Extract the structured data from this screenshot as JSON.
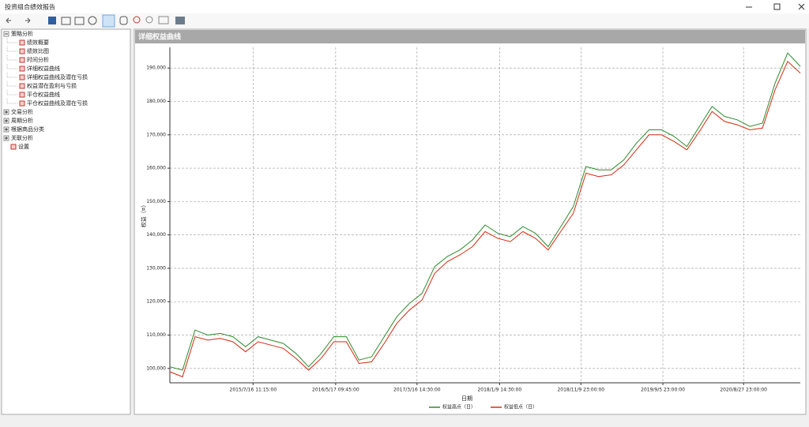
{
  "window": {
    "title": "投资组合绩效报告"
  },
  "tree": [
    {
      "label": "策略分析",
      "children": [
        "绩效概要",
        "绩效比图",
        "时间分析",
        "详细权益曲线",
        "详细权益曲线及潜在亏损",
        "权益潜在盈利与亏损",
        "平仓权益曲线",
        "平仓权益曲线及潜在亏损"
      ]
    },
    {
      "label": "交易分析",
      "children": []
    },
    {
      "label": "周期分析",
      "children": []
    },
    {
      "label": "根据商品分类",
      "children": []
    },
    {
      "label": "关联分析",
      "children": []
    }
  ],
  "settings_label": "设置",
  "panel_title": "详细权益曲线",
  "chart_data": {
    "type": "line",
    "x_label": "日期",
    "y_label": "权益（¤）",
    "x": [
      0,
      2,
      4,
      6,
      8,
      10,
      12,
      14,
      16,
      18,
      20,
      22,
      24,
      26,
      28,
      30,
      32,
      34,
      36,
      38,
      40,
      42,
      44,
      46,
      48,
      50,
      52,
      54,
      56,
      58,
      60,
      62,
      64,
      66,
      68,
      70,
      72,
      74,
      76,
      78,
      80,
      82,
      84,
      86,
      88,
      90,
      92,
      94,
      96,
      98,
      100
    ],
    "xlim": [
      0,
      100
    ],
    "xticks": [
      {
        "value": 13.2,
        "label": "2015/7/16 11:15:00"
      },
      {
        "value": 26.3,
        "label": "2016/5/17 09:45:00"
      },
      {
        "value": 39.2,
        "label": "2017/3/16 14:30:00"
      },
      {
        "value": 52.3,
        "label": "2018/1/9 14:30:00"
      },
      {
        "value": 65.2,
        "label": "2018/11/9 23:00:00"
      },
      {
        "value": 78.2,
        "label": "2019/9/5 23:00:00"
      },
      {
        "value": 91.0,
        "label": "2020/8/27 23:00:00"
      }
    ],
    "ylim": [
      95700,
      196200
    ],
    "yticks": [
      {
        "value": 100000,
        "label": "100,000"
      },
      {
        "value": 110000,
        "label": "110,000"
      },
      {
        "value": 120000,
        "label": "120,000"
      },
      {
        "value": 130000,
        "label": "130,000"
      },
      {
        "value": 140000,
        "label": "140,000"
      },
      {
        "value": 150000,
        "label": "150,000"
      },
      {
        "value": 160000,
        "label": "160,000"
      },
      {
        "value": 170000,
        "label": "170,000"
      },
      {
        "value": 180000,
        "label": "180,000"
      },
      {
        "value": 190000,
        "label": "190,000"
      }
    ],
    "grid": true,
    "series": [
      {
        "name": "权益高点（日）",
        "color": "#2e8b2e",
        "values": [
          100500,
          99500,
          111500,
          110000,
          110500,
          109500,
          106500,
          109500,
          108500,
          107500,
          104500,
          100500,
          104500,
          109500,
          109500,
          102500,
          103500,
          109500,
          115500,
          119500,
          122500,
          130500,
          133500,
          135500,
          138500,
          143000,
          140500,
          139500,
          142500,
          140500,
          136500,
          142500,
          148500,
          160500,
          159500,
          159500,
          162500,
          167500,
          171500,
          171500,
          169500,
          166500,
          172500,
          178500,
          175500,
          174500,
          172500,
          173500,
          185500,
          194500,
          190500
        ]
      },
      {
        "name": "权益低点（日）",
        "color": "#d62a10",
        "values": [
          99000,
          97500,
          109500,
          108500,
          109000,
          108000,
          105000,
          108000,
          107000,
          106000,
          103000,
          99500,
          103000,
          108000,
          108000,
          101500,
          102000,
          107500,
          113500,
          117500,
          120500,
          128500,
          132000,
          134000,
          136500,
          141000,
          139000,
          138000,
          141000,
          139000,
          135500,
          141000,
          146500,
          158500,
          157500,
          158000,
          161000,
          165500,
          170000,
          170000,
          168000,
          165500,
          171000,
          177000,
          174000,
          173000,
          171500,
          172000,
          183500,
          192000,
          188500
        ]
      }
    ]
  }
}
